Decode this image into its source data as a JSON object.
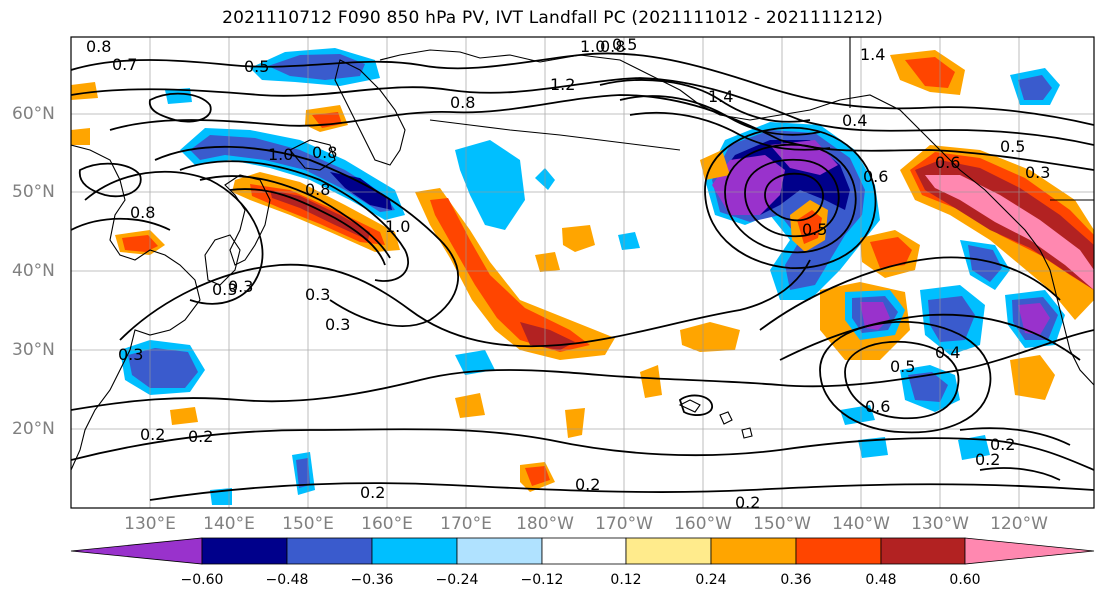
{
  "title": "2021110712 F090 850 hPa PV, IVT Landfall PC (2021111012 - 2021111212)",
  "latitude_labels": [
    "60°N",
    "50°N",
    "40°N",
    "30°N",
    "20°N"
  ],
  "longitude_labels": [
    "130°E",
    "140°E",
    "150°E",
    "160°E",
    "170°E",
    "180°W",
    "170°W",
    "160°W",
    "150°W",
    "140°W",
    "130°W",
    "120°W"
  ],
  "colorbar": {
    "colors": [
      "#9932cc",
      "#00008b",
      "#3a5bcd",
      "#00bfff",
      "#b0e2ff",
      "#ffffff",
      "#ffeb8c",
      "#ffa500",
      "#ff4500",
      "#b22222",
      "#ff88b0"
    ],
    "tick_labels": [
      "−0.60",
      "−0.48",
      "−0.36",
      "−0.24",
      "−0.12",
      "0.12",
      "0.24",
      "0.36",
      "0.48",
      "0.60"
    ]
  },
  "contour_labels": [
    "0.8",
    "0.7",
    "0.5",
    "0.5",
    "1.0",
    "0.8",
    "1.2",
    "0.8",
    "1.4",
    "1.4",
    "0.4",
    "0.8",
    "1.0",
    "0.8",
    "0.8",
    "1.0",
    "0.6",
    "0.5",
    "0.3",
    "0.3",
    "0.3",
    "0.3",
    "0.5",
    "0.4",
    "0.6",
    "0.2",
    "0.2",
    "0.2",
    "0.2",
    "0.2",
    "0.2",
    "0.2",
    "0.3",
    "0.5",
    "0.6",
    "0.3"
  ]
}
